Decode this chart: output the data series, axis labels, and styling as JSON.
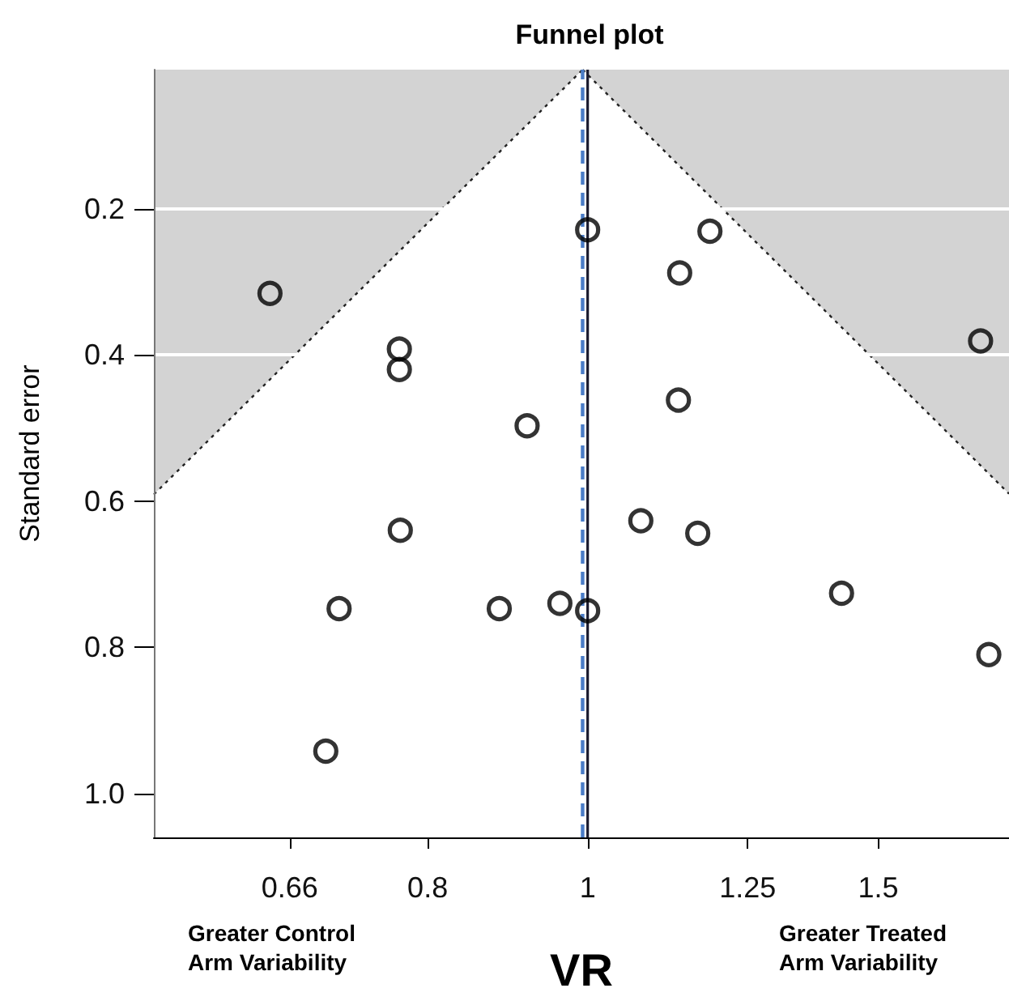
{
  "chart_data": {
    "type": "scatter",
    "title": "Funnel plot",
    "xlabel": "VR",
    "ylabel": "Standard error",
    "annotations": [
      "Greater Control Arm Variability",
      "Greater Treated Arm Variability"
    ],
    "log": "x",
    "xlim": [
      0.546,
      1.8
    ],
    "xticks": [
      0.66,
      0.8,
      1,
      1.25,
      1.5
    ],
    "ylim": [
      1.06,
      0.01
    ],
    "yticks": [
      0.2,
      0.4,
      0.6,
      0.8,
      {
        "value": 1,
        "label": "1.0"
      }
    ],
    "grid": "y",
    "marker": "circle",
    "series": [
      {
        "type": "area",
        "color": "#d3d3d3",
        "line_style": "dotted",
        "marker": "none",
        "x": [
          0.546,
          0.993
        ],
        "values": [
          0.591,
          0.01
        ]
      },
      {
        "type": "area",
        "color": "#d3d3d3",
        "line_style": "dotted",
        "marker": "none",
        "x": [
          0.993,
          1.8
        ],
        "values": [
          0.01,
          0.59
        ]
      },
      {
        "color": "#000000",
        "x": [
          0.642,
          1.0,
          1.186,
          1.137,
          1.73,
          0.769,
          0.769,
          1.135,
          0.919,
          0.77,
          1.077,
          1.166,
          0.707,
          0.884,
          0.962,
          1.0,
          1.425,
          1.75,
          0.694
        ],
        "values": [
          0.316,
          0.229,
          0.231,
          0.288,
          0.381,
          0.392,
          0.42,
          0.462,
          0.497,
          0.64,
          0.627,
          0.644,
          0.747,
          0.747,
          0.74,
          0.75,
          0.726,
          0.81,
          0.942
        ]
      }
    ],
    "ref_lines": [
      {
        "axis": "x",
        "value": 1,
        "color": "#1a1a2e",
        "line_style": "solid"
      },
      {
        "axis": "x",
        "value": 0.993,
        "color": "#4a7cc7",
        "line_style": "dashed"
      }
    ]
  }
}
